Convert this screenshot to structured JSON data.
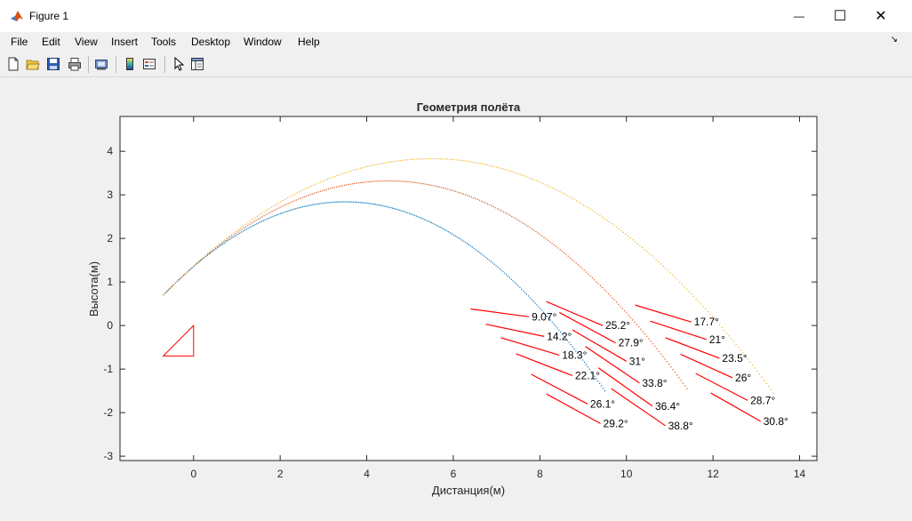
{
  "window": {
    "title": "Figure 1",
    "minimize": "—",
    "maximize": "☐",
    "close": "✕"
  },
  "menu": [
    "File",
    "Edit",
    "View",
    "Insert",
    "Tools",
    "Desktop",
    "Window",
    "Help"
  ],
  "toolbar": [
    "new-figure-icon",
    "open-file-icon",
    "save-icon",
    "print-icon",
    "print-preview-icon",
    "colorbar-icon",
    "legend-icon",
    "pointer-icon",
    "property-editor-icon"
  ],
  "colors": {
    "series1": "#0072bd",
    "series2": "#d95319",
    "series3": "#edb120",
    "annotation": "#ff0000"
  },
  "chart_data": {
    "type": "scatter",
    "title": "Геометрия полёта",
    "xlabel": "Дистанция(м)",
    "ylabel": "Высота(м)",
    "xlim": [
      -1.7,
      14.4
    ],
    "ylim": [
      -3.1,
      4.8
    ],
    "xticks": [
      0,
      2,
      4,
      6,
      8,
      10,
      12,
      14
    ],
    "yticks": [
      -3,
      -2,
      -1,
      0,
      1,
      2,
      3,
      4
    ],
    "series": [
      {
        "color": "#0072bd",
        "x_start": -0.7,
        "x_apex": 3.5,
        "y_apex": 2.84,
        "x_end": 9.5,
        "y_end": -1.5
      },
      {
        "color": "#d95319",
        "x_start": -0.7,
        "x_apex": 4.5,
        "y_apex": 3.32,
        "x_end": 11.4,
        "y_end": -1.45
      },
      {
        "color": "#edb120",
        "x_start": -0.7,
        "x_apex": 5.5,
        "y_apex": 3.83,
        "x_end": 13.4,
        "y_end": -1.55
      }
    ],
    "triangle": [
      [
        -0.7,
        -0.7
      ],
      [
        0,
        -0.7
      ],
      [
        0,
        0
      ]
    ],
    "annotations": [
      {
        "label": "9.07°",
        "x1": 6.4,
        "y1": 0.38,
        "x2": 7.75,
        "y2": 0.2
      },
      {
        "label": "14.2°",
        "x1": 6.75,
        "y1": 0.03,
        "x2": 8.1,
        "y2": -0.25
      },
      {
        "label": "18.3°",
        "x1": 7.1,
        "y1": -0.28,
        "x2": 8.45,
        "y2": -0.68
      },
      {
        "label": "22.1°",
        "x1": 7.45,
        "y1": -0.65,
        "x2": 8.75,
        "y2": -1.15
      },
      {
        "label": "26.1°",
        "x1": 7.8,
        "y1": -1.12,
        "x2": 9.1,
        "y2": -1.8
      },
      {
        "label": "29.2°",
        "x1": 8.15,
        "y1": -1.57,
        "x2": 9.4,
        "y2": -2.25
      },
      {
        "label": "25.2°",
        "x1": 8.15,
        "y1": 0.55,
        "x2": 9.45,
        "y2": 0.0
      },
      {
        "label": "27.9°",
        "x1": 8.45,
        "y1": 0.3,
        "x2": 9.75,
        "y2": -0.4
      },
      {
        "label": "31°",
        "x1": 8.75,
        "y1": -0.1,
        "x2": 10.0,
        "y2": -0.82
      },
      {
        "label": "33.8°",
        "x1": 9.05,
        "y1": -0.48,
        "x2": 10.3,
        "y2": -1.32
      },
      {
        "label": "36.4°",
        "x1": 9.35,
        "y1": -0.97,
        "x2": 10.6,
        "y2": -1.85
      },
      {
        "label": "38.8°",
        "x1": 9.65,
        "y1": -1.45,
        "x2": 10.9,
        "y2": -2.3
      },
      {
        "label": "17.7°",
        "x1": 10.2,
        "y1": 0.47,
        "x2": 11.5,
        "y2": 0.08
      },
      {
        "label": "21°",
        "x1": 10.55,
        "y1": 0.1,
        "x2": 11.85,
        "y2": -0.32
      },
      {
        "label": "23.5°",
        "x1": 10.9,
        "y1": -0.28,
        "x2": 12.15,
        "y2": -0.75
      },
      {
        "label": "26°",
        "x1": 11.25,
        "y1": -0.66,
        "x2": 12.45,
        "y2": -1.2
      },
      {
        "label": "28.7°",
        "x1": 11.6,
        "y1": -1.1,
        "x2": 12.8,
        "y2": -1.72
      },
      {
        "label": "30.8°",
        "x1": 11.95,
        "y1": -1.55,
        "x2": 13.1,
        "y2": -2.2
      }
    ]
  }
}
